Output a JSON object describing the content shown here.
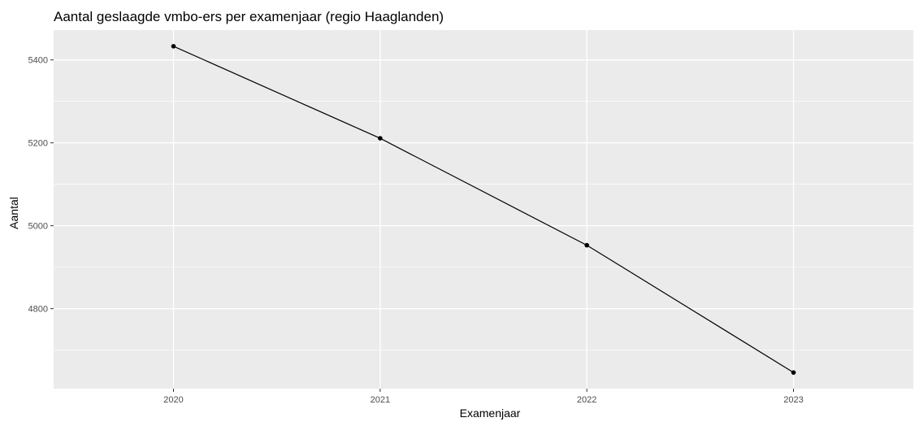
{
  "chart_data": {
    "type": "line",
    "title": "Aantal geslaagde vmbo-ers per examenjaar (regio Haaglanden)",
    "xlabel": "Examenjaar",
    "ylabel": "Aantal",
    "x": [
      2020,
      2021,
      2022,
      2023
    ],
    "xticks": [
      "2020",
      "2021",
      "2022",
      "2023"
    ],
    "y": [
      5433,
      5211,
      4953,
      4646
    ],
    "yticks": [
      4800,
      5000,
      5200,
      5400
    ],
    "ylim": [
      4607,
      5472
    ],
    "xlim": [
      2019.42,
      2023.58
    ],
    "grid": true,
    "colors": {
      "panel": "#ebebeb",
      "grid": "#ffffff",
      "line": "#000000"
    }
  }
}
